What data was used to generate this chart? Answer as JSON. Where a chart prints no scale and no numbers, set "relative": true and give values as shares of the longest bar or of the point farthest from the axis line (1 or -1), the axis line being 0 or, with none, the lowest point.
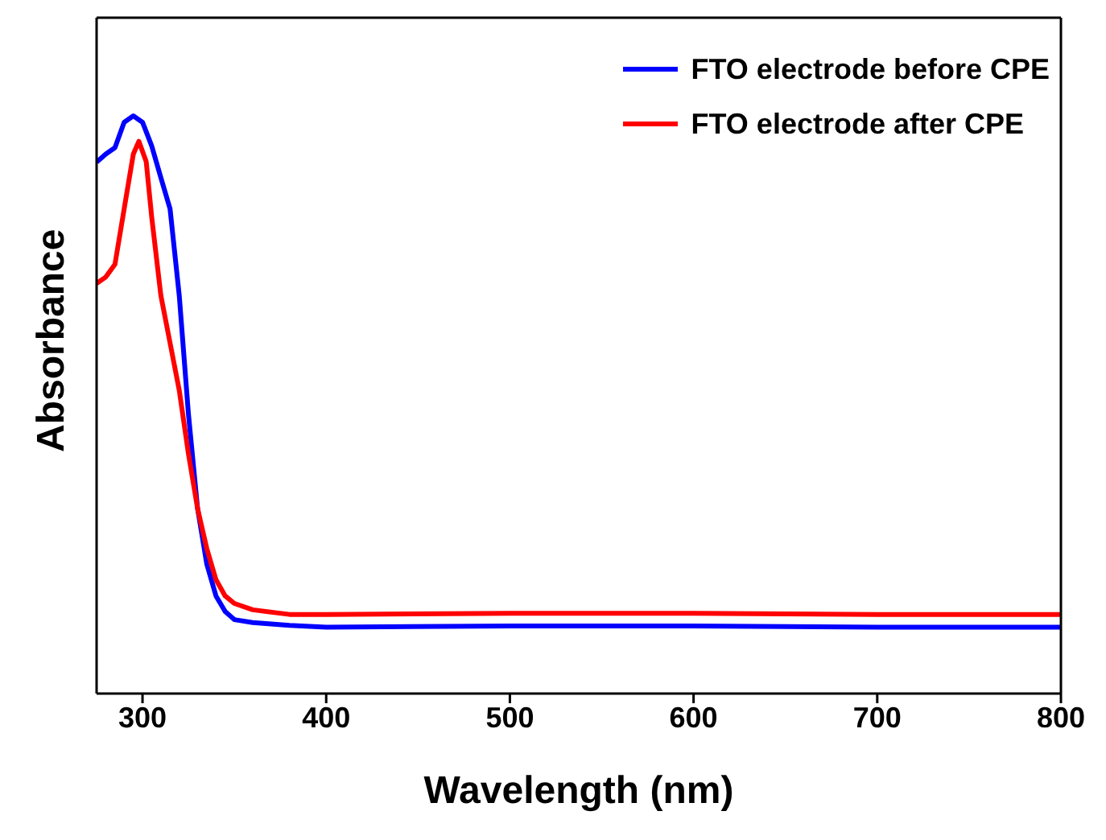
{
  "chart_data": {
    "type": "line",
    "relative": true,
    "xlabel": "Wavelength (nm)",
    "ylabel": "Absorbance",
    "xlim": [
      275,
      800
    ],
    "xticks": [
      300,
      400,
      500,
      600,
      700,
      800
    ],
    "grid": false,
    "legend": "top right",
    "marker": "none",
    "line_style": "solid",
    "series": [
      {
        "name": "FTO electrode before CPE",
        "color": "#0000ff",
        "x": [
          275,
          280,
          285,
          290,
          295,
          300,
          305,
          310,
          315,
          320,
          325,
          330,
          335,
          340,
          345,
          350,
          360,
          380,
          400,
          500,
          600,
          700,
          800
        ],
        "values": [
          0.92,
          0.934,
          0.945,
          0.989,
          1,
          0.989,
          0.948,
          0.893,
          0.839,
          0.689,
          0.484,
          0.32,
          0.224,
          0.169,
          0.142,
          0.128,
          0.123,
          0.118,
          0.115,
          0.117,
          0.117,
          0.115,
          0.115
        ]
      },
      {
        "name": "FTO electrode after CPE",
        "color": "#ff0000",
        "x": [
          275,
          280,
          285,
          290,
          295,
          298,
          302,
          305,
          310,
          315,
          320,
          325,
          330,
          335,
          340,
          345,
          350,
          360,
          380,
          400,
          500,
          600,
          700,
          800
        ],
        "values": [
          0.71,
          0.721,
          0.743,
          0.839,
          0.934,
          0.956,
          0.921,
          0.825,
          0.689,
          0.607,
          0.525,
          0.415,
          0.32,
          0.251,
          0.197,
          0.169,
          0.156,
          0.145,
          0.137,
          0.137,
          0.139,
          0.139,
          0.137,
          0.137
        ]
      }
    ]
  }
}
